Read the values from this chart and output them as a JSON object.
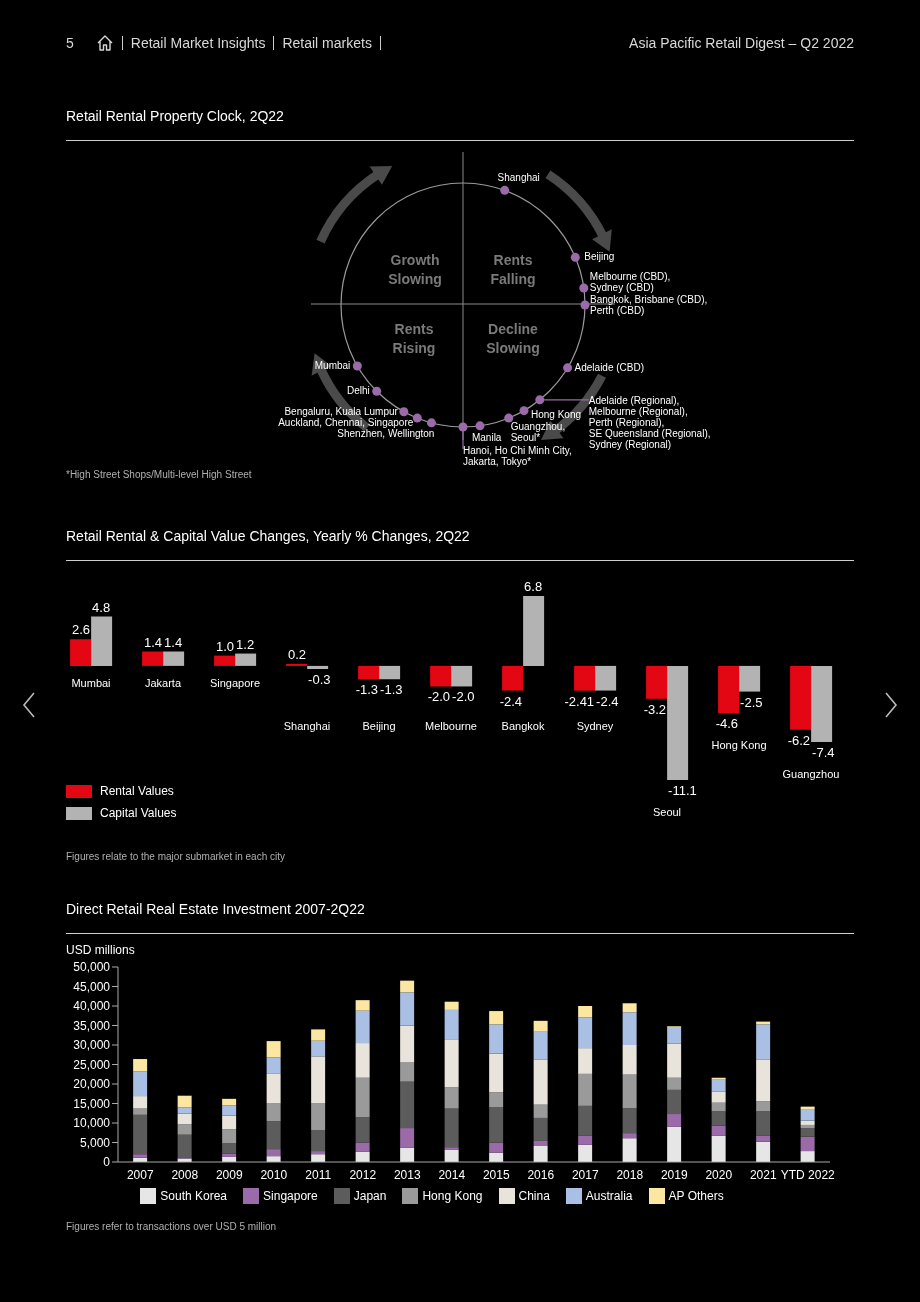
{
  "chart_data": [
    {
      "type": "other",
      "title": "Retail Rental Property Clock, 2Q22",
      "categories": [
        "Shanghai",
        "Beijing",
        "Melbourne (CBD),\nSydney (CBD)",
        "Bangkok, Brisbane (CBD),\nPerth (CBD)",
        "Adelaide (CBD)",
        "Adelaide (Regional),\nMelbourne (Regional),\nPerth (Regional),\nSE Queensland (Regional),\nSydney (Regional)",
        "Hong Kong",
        "Guangzhou,\nSeoul*",
        "Manila",
        "Hanoi, Ho Chi Minh City,\nJakarta, Tokyo*",
        "Shenzhen, Wellington",
        "Auckland, Chennai, Singapore",
        "Bengaluru, Kuala Lumpur",
        "Delhi",
        "Mumbai"
      ],
      "annotations": [
        "Growth Slowing",
        "Rents Falling",
        "Decline Slowing",
        "Rents Rising",
        "*High Street Shops/Multi-level High Street",
        "5",
        "Retail Market Insights",
        "Retail markets",
        "Asia Pacific Retail Digest – Q2 2022"
      ]
    },
    {
      "type": "bar",
      "title": "Retail Rental & Capital Value Changes, Yearly % Changes, 2Q22",
      "categories": [
        "Mumbai",
        "Jakarta",
        "Singapore",
        "Shanghai",
        "Beijing",
        "Melbourne",
        "Bangkok",
        "Sydney",
        "Seoul",
        "Hong Kong",
        "Guangzhou"
      ],
      "series": [
        {
          "name": "Rental Values",
          "color": "#e30613",
          "values": [
            2.6,
            1.4,
            1.0,
            0.2,
            -1.3,
            -2.0,
            -2.4,
            -2.41,
            -3.2,
            -4.6,
            -6.2
          ],
          "value_labels": [
            "2.6",
            "1.4",
            "1.0",
            "0.2",
            "-1.3",
            "-2.0",
            "-2.4",
            "-2.41",
            "-3.2",
            "-4.6",
            "-6.2"
          ]
        },
        {
          "name": "Capital Values",
          "color": "#b3b3b3",
          "values": [
            4.8,
            1.4,
            1.2,
            -0.3,
            -1.3,
            -2.0,
            6.8,
            -2.4,
            -11.1,
            -2.5,
            -7.4
          ],
          "value_labels": [
            "4.8",
            "1.4",
            "1.2",
            "-0.3",
            "-1.3",
            "-2.0",
            "6.8",
            "-2.4",
            "-11.1",
            "-2.5",
            "-7.4"
          ]
        }
      ],
      "legend": "bottom left",
      "annotations": [
        "Figures relate to the major submarket in each city"
      ]
    },
    {
      "type": "bar",
      "title": "Direct Retail Real Estate Investment 2007-2Q22",
      "ylabel": "USD millions",
      "stacked": true,
      "categories": [
        "2007",
        "2008",
        "2009",
        "2010",
        "2011",
        "2012",
        "2013",
        "2014",
        "2015",
        "2016",
        "2017",
        "2018",
        "2019",
        "2020",
        "2021",
        "YTD 2022"
      ],
      "series": [
        {
          "name": "South Korea",
          "color": "#e6e6e6",
          "values": [
            1100,
            900,
            1300,
            1500,
            2000,
            2600,
            3700,
            3100,
            2400,
            4100,
            4400,
            6100,
            9000,
            6700,
            5200,
            2800
          ]
        },
        {
          "name": "Singapore",
          "color": "#9b6aa8",
          "values": [
            900,
            300,
            900,
            1800,
            800,
            2400,
            5000,
            700,
            2600,
            1300,
            2300,
            1300,
            3300,
            2600,
            1500,
            3700
          ]
        },
        {
          "name": "Japan",
          "color": "#5c5c5c",
          "values": [
            10100,
            5800,
            2600,
            7200,
            5400,
            6500,
            11900,
            9900,
            9100,
            5900,
            7700,
            6400,
            6200,
            3700,
            6300,
            2200
          ]
        },
        {
          "name": "Hong Kong",
          "color": "#9a9a9a",
          "values": [
            1600,
            2700,
            3600,
            4500,
            6800,
            10100,
            4900,
            5500,
            3800,
            3400,
            8200,
            8600,
            3100,
            2200,
            2600,
            800
          ]
        },
        {
          "name": "China",
          "color": "#e8e4dc",
          "values": [
            3200,
            2700,
            3500,
            7600,
            12100,
            8900,
            9500,
            12100,
            9900,
            11500,
            6600,
            7600,
            8800,
            2800,
            10600,
            1100
          ]
        },
        {
          "name": "Australia",
          "color": "#a9bfe3",
          "values": [
            6300,
            1600,
            2600,
            4200,
            4000,
            8300,
            8500,
            7700,
            7500,
            7200,
            7900,
            8400,
            4000,
            3100,
            9100,
            2800
          ]
        },
        {
          "name": "AP Others",
          "color": "#fbe7a1",
          "values": [
            3200,
            3000,
            1700,
            4200,
            2900,
            2700,
            3000,
            2100,
            3400,
            2800,
            2900,
            2300,
            400,
            500,
            700,
            800
          ]
        }
      ],
      "ylim": [
        0,
        50000
      ],
      "yticks": [
        {
          "value": 0,
          "label": "0"
        },
        {
          "value": 5000,
          "label": "5,000"
        },
        {
          "value": 10000,
          "label": "10,000"
        },
        {
          "value": 15000,
          "label": "15,000"
        },
        {
          "value": 20000,
          "label": "20,000"
        },
        {
          "value": 25000,
          "label": "25,000"
        },
        {
          "value": 30000,
          "label": "30,000"
        },
        {
          "value": 35000,
          "label": "35,000"
        },
        {
          "value": 40000,
          "label": "40,000"
        },
        {
          "value": 45000,
          "label": "45,000"
        },
        {
          "value": 50000,
          "label": "50,000"
        }
      ],
      "grid": false,
      "legend": "bottom",
      "annotations": [
        "Figures refer to transactions over USD 5 million"
      ]
    }
  ]
}
